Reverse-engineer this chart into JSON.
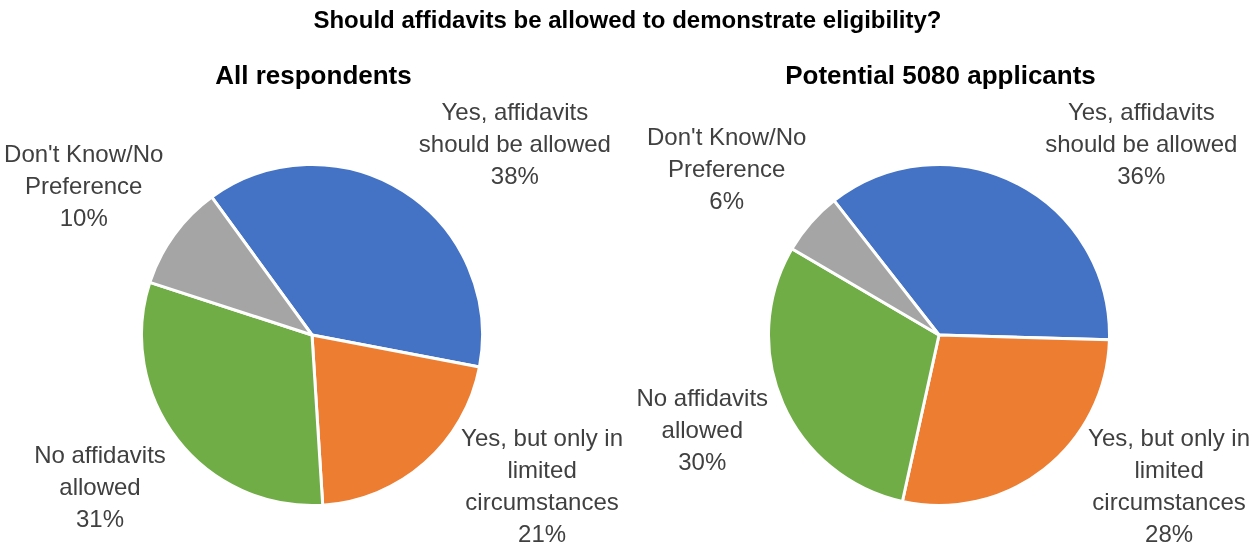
{
  "chart_data": [
    {
      "type": "pie",
      "title": "Should affidavits be allowed to demonstrate eligibility?",
      "subtitle": "All respondents",
      "categories": [
        "Yes, affidavits should be allowed",
        "Yes, but only in limited circumstances",
        "No affidavits allowed",
        "Don't Know/No Preference"
      ],
      "values": [
        38,
        21,
        31,
        10
      ],
      "colors": [
        "#4472c4",
        "#ed7d31",
        "#70ad47",
        "#a5a5a5"
      ],
      "value_labels": [
        "38%",
        "21%",
        "31%",
        "10%"
      ]
    },
    {
      "type": "pie",
      "title": "Potential 5080 applicants",
      "categories": [
        "Yes, affidavits should be allowed",
        "Yes, but only in limited circumstances",
        "No affidavits allowed",
        "Don't Know/No Preference"
      ],
      "values": [
        36,
        28,
        30,
        6
      ],
      "colors": [
        "#4472c4",
        "#ed7d31",
        "#70ad47",
        "#a5a5a5"
      ],
      "value_labels": [
        "36%",
        "28%",
        "30%",
        "6%"
      ]
    }
  ]
}
